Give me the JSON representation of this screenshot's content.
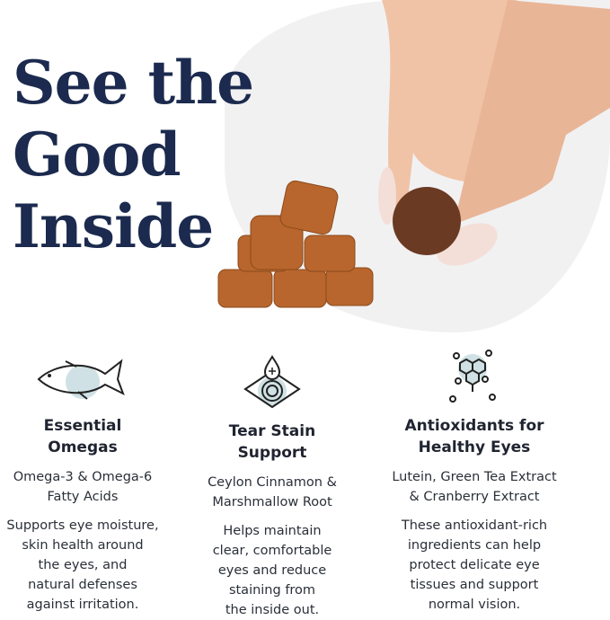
{
  "hero": {
    "title_lines": [
      "See the",
      "Good",
      "Inside"
    ]
  },
  "colors": {
    "title": "#1b2a4e",
    "accent_circle": "#cfe1e4",
    "chew": "#b5652c"
  },
  "features": [
    {
      "icon": "fish-icon",
      "heading_lines": [
        "Essential",
        "Omegas"
      ],
      "sub_lines": [
        "Omega-3 & Omega-6",
        "Fatty Acids"
      ],
      "body_lines": [
        "Supports eye moisture,",
        "skin health around",
        "the eyes, and",
        "natural defenses",
        "against irritation."
      ]
    },
    {
      "icon": "eye-drop-icon",
      "heading_lines": [
        "Tear Stain",
        "Support"
      ],
      "sub_lines": [
        "Ceylon Cinnamon &",
        "Marshmallow Root"
      ],
      "body_lines": [
        "Helps maintain",
        "clear, comfortable",
        "eyes and reduce",
        "staining from",
        "the inside out."
      ]
    },
    {
      "icon": "molecule-icon",
      "heading_lines": [
        "Antioxidants for",
        "Healthy Eyes"
      ],
      "sub_lines": [
        "Lutein, Green Tea Extract",
        "& Cranberry Extract"
      ],
      "body_lines": [
        "These antioxidant-rich",
        "ingredients can help",
        "protect delicate eye",
        "tissues and support",
        "normal vision."
      ]
    }
  ]
}
